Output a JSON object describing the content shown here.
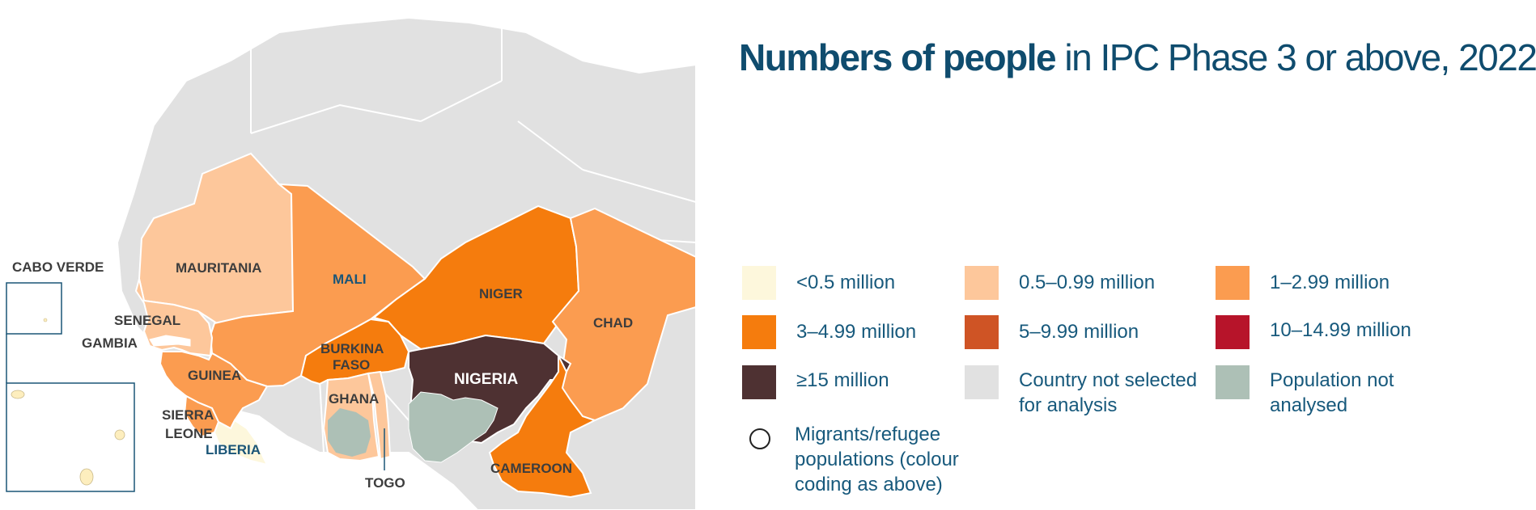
{
  "title": {
    "bold": "Numbers of people",
    "rest": " in IPC Phase 3 or above, 2022"
  },
  "colors": {
    "lt_0_5": "#fdf7dc",
    "r0_5_0_99": "#fdc79b",
    "r1_2_99": "#fb9c50",
    "r3_4_99": "#f57c0d",
    "r5_9_99": "#cf5425",
    "r10_14_99": "#b7142a",
    "ge15": "#4e3132",
    "not_selected": "#e1e1e1",
    "not_analysed": "#adc0b6",
    "sea": "#ffffff"
  },
  "map": {
    "labels": {
      "cabo_verde": "CABO VERDE",
      "mauritania": "MAURITANIA",
      "mali": "MALI",
      "niger": "NIGER",
      "chad": "CHAD",
      "senegal": "SENEGAL",
      "gambia": "GAMBIA",
      "burkina_faso_1": "BURKINA",
      "burkina_faso_2": "FASO",
      "guinea": "GUINEA",
      "nigeria": "NIGERIA",
      "ghana": "GHANA",
      "sierra_leone_1": "SIERRA",
      "sierra_leone_2": "LEONE",
      "liberia": "LIBERIA",
      "cameroon": "CAMEROON",
      "togo": "TOGO"
    }
  },
  "legend": {
    "lt_0_5": "<0.5 million",
    "r0_5_0_99": "0.5–0.99 million",
    "r1_2_99": "1–2.99 million",
    "r3_4_99": "3–4.99 million",
    "r5_9_99": "5–9.99 million",
    "r10_14_99": "10–14.99 million",
    "ge15": "≥15 million",
    "not_selected_1": "Country not selected",
    "not_selected_2": "for analysis",
    "not_analysed_1": "Population not",
    "not_analysed_2": "analysed",
    "migrants_1": "Migrants/refugee",
    "migrants_2": "populations (colour",
    "migrants_3": "coding as above)"
  }
}
